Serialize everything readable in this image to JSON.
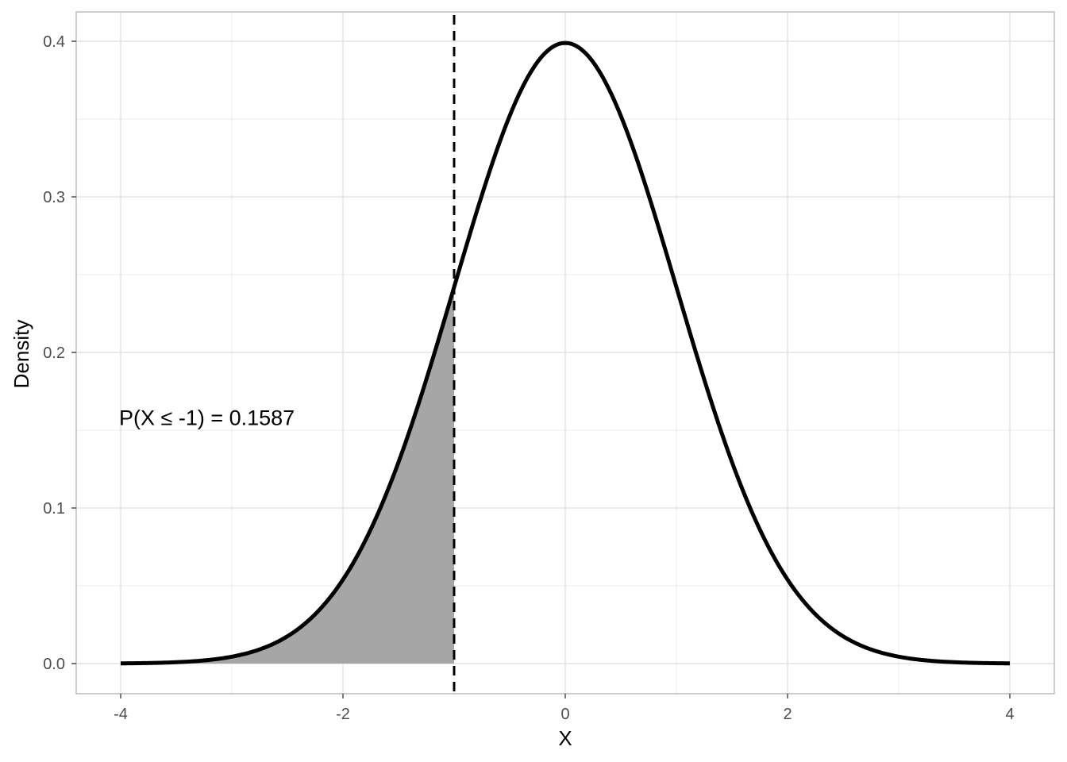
{
  "chart_data": {
    "type": "area",
    "distribution": "standard normal density",
    "xlabel": "X",
    "ylabel": "Density",
    "xlim": [
      -4,
      4
    ],
    "ylim": [
      0,
      0.4
    ],
    "x_ticks": [
      -4,
      -2,
      0,
      2,
      4
    ],
    "x_tick_labels": [
      "-4",
      "-2",
      "0",
      "2",
      "4"
    ],
    "y_ticks": [
      0.0,
      0.1,
      0.2,
      0.3,
      0.4
    ],
    "y_tick_labels": [
      "0.0",
      "0.1",
      "0.2",
      "0.3",
      "0.4"
    ],
    "grid": true,
    "series": [
      {
        "x": [
          -4,
          -3.5,
          -3,
          -2.5,
          -2,
          -1.5,
          -1,
          -0.5,
          0,
          0.5,
          1,
          1.5,
          2,
          2.5,
          3,
          3.5,
          4
        ],
        "values": [
          0.0001,
          0.0009,
          0.0044,
          0.0175,
          0.054,
          0.1295,
          0.242,
          0.3521,
          0.3989,
          0.3521,
          0.242,
          0.1295,
          0.054,
          0.0175,
          0.0044,
          0.0009,
          0.0001
        ]
      }
    ],
    "shaded_region": {
      "from": -4,
      "to": -1,
      "color": "#a6a6a6"
    },
    "vline": {
      "x": -1,
      "style": "dashed"
    },
    "annotation": {
      "text": "P(X ≤ -1) = 0.1587",
      "x": -4,
      "y": 0.158
    }
  }
}
